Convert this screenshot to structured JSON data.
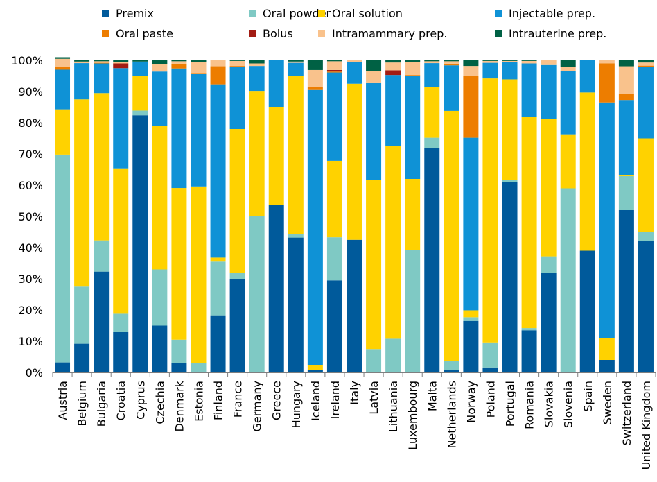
{
  "chart_data": {
    "type": "bar",
    "stacked": true,
    "title": "",
    "xlabel": "",
    "ylabel": "",
    "ylim": [
      0,
      100
    ],
    "y_ticks": [
      "0%",
      "10%",
      "20%",
      "30%",
      "40%",
      "50%",
      "60%",
      "70%",
      "80%",
      "90%",
      "100%"
    ],
    "grid": false,
    "legend_position": "top",
    "categories": [
      "Austria",
      "Belgium",
      "Bulgaria",
      "Croatia",
      "Cyprus",
      "Czechia",
      "Denmark",
      "Estonia",
      "Finland",
      "France",
      "Germany",
      "Greece",
      "Hungary",
      "Iceland",
      "Ireland",
      "Italy",
      "Latvia",
      "Lithuania",
      "Luxembourg",
      "Malta",
      "Netherlands",
      "Norway",
      "Poland",
      "Portugal",
      "Romania",
      "Slovakia",
      "Slovenia",
      "Spain",
      "Sweden",
      "Switzerland",
      "United Kingdom"
    ],
    "series": [
      {
        "name": "Premix",
        "color": "#005a9b",
        "values": [
          3.2,
          9.2,
          32.3,
          13.0,
          82.4,
          15.0,
          3.0,
          0.0,
          18.3,
          30.0,
          0.0,
          53.6,
          43.2,
          0.8,
          29.5,
          42.5,
          0.0,
          0.0,
          0.0,
          71.9,
          0.8,
          16.5,
          1.6,
          61.0,
          13.5,
          32.0,
          0.0,
          39.0,
          4.0,
          52.0,
          42.0
        ]
      },
      {
        "name": "Oral powder",
        "color": "#7fc9c4",
        "values": [
          66.6,
          18.3,
          10.0,
          5.8,
          1.5,
          18.0,
          7.5,
          3.0,
          17.2,
          1.8,
          50.0,
          0.0,
          1.2,
          0.0,
          13.8,
          0.0,
          7.5,
          10.8,
          39.2,
          3.3,
          2.8,
          1.2,
          8.0,
          0.7,
          0.7,
          5.2,
          59.0,
          0.0,
          0.0,
          10.9,
          3.0
        ]
      },
      {
        "name": "Oral solution",
        "color": "#ffd200",
        "values": [
          14.5,
          60.0,
          47.2,
          46.6,
          11.1,
          46.1,
          48.6,
          56.6,
          1.3,
          46.2,
          40.2,
          31.4,
          50.5,
          1.6,
          24.5,
          50.0,
          54.2,
          61.8,
          22.8,
          16.2,
          80.2,
          2.2,
          84.6,
          32.2,
          67.8,
          44.0,
          17.3,
          50.7,
          7.0,
          0.3,
          30.0
        ]
      },
      {
        "name": "Injectable prep.",
        "color": "#0f92d6",
        "values": [
          12.7,
          11.6,
          9.5,
          32.1,
          4.6,
          17.3,
          38.3,
          36.1,
          55.5,
          20.0,
          8.0,
          15.0,
          4.3,
          88.1,
          28.3,
          7.0,
          31.2,
          22.7,
          33.0,
          7.7,
          14.6,
          55.3,
          5.0,
          5.6,
          17.0,
          17.3,
          20.2,
          10.3,
          75.5,
          24.1,
          23.0
        ]
      },
      {
        "name": "Oral paste",
        "color": "#ed7d00",
        "values": [
          1.0,
          0.0,
          0.2,
          0.0,
          0.0,
          0.0,
          1.5,
          0.2,
          5.8,
          0.2,
          0.0,
          0.0,
          0.0,
          0.9,
          0.3,
          0.0,
          0.0,
          0.0,
          0.3,
          0.0,
          0.5,
          19.8,
          0.0,
          0.0,
          0.0,
          0.0,
          0.0,
          0.0,
          12.5,
          2.0,
          0.3
        ]
      },
      {
        "name": "Bolus",
        "color": "#a21c13",
        "values": [
          0.0,
          0.0,
          0.0,
          1.5,
          0.0,
          0.0,
          0.0,
          0.0,
          0.0,
          0.0,
          0.0,
          0.0,
          0.0,
          0.0,
          0.5,
          0.0,
          0.0,
          1.5,
          0.0,
          0.0,
          0.0,
          0.0,
          0.0,
          0.0,
          0.0,
          0.0,
          0.0,
          0.0,
          0.0,
          0.0,
          0.0
        ]
      },
      {
        "name": "Intramammary prep.",
        "color": "#f9c28c",
        "values": [
          2.5,
          0.5,
          0.5,
          0.5,
          0.0,
          2.4,
          0.8,
          3.5,
          1.9,
          1.6,
          0.8,
          0.0,
          0.4,
          5.5,
          2.8,
          0.5,
          3.6,
          2.5,
          4.2,
          0.6,
          0.8,
          3.2,
          0.6,
          0.3,
          0.8,
          1.5,
          1.5,
          0.0,
          1.0,
          8.8,
          1.0
        ]
      },
      {
        "name": "Intrauterine prep.",
        "color": "#006144",
        "values": [
          0.5,
          0.4,
          0.3,
          0.5,
          0.4,
          1.2,
          0.3,
          0.6,
          0.0,
          0.2,
          1.0,
          0.0,
          0.4,
          3.1,
          0.3,
          0.0,
          3.5,
          0.7,
          0.5,
          0.3,
          0.3,
          1.8,
          0.2,
          0.2,
          0.2,
          0.0,
          2.0,
          0.0,
          0.0,
          1.9,
          0.7
        ]
      }
    ]
  }
}
